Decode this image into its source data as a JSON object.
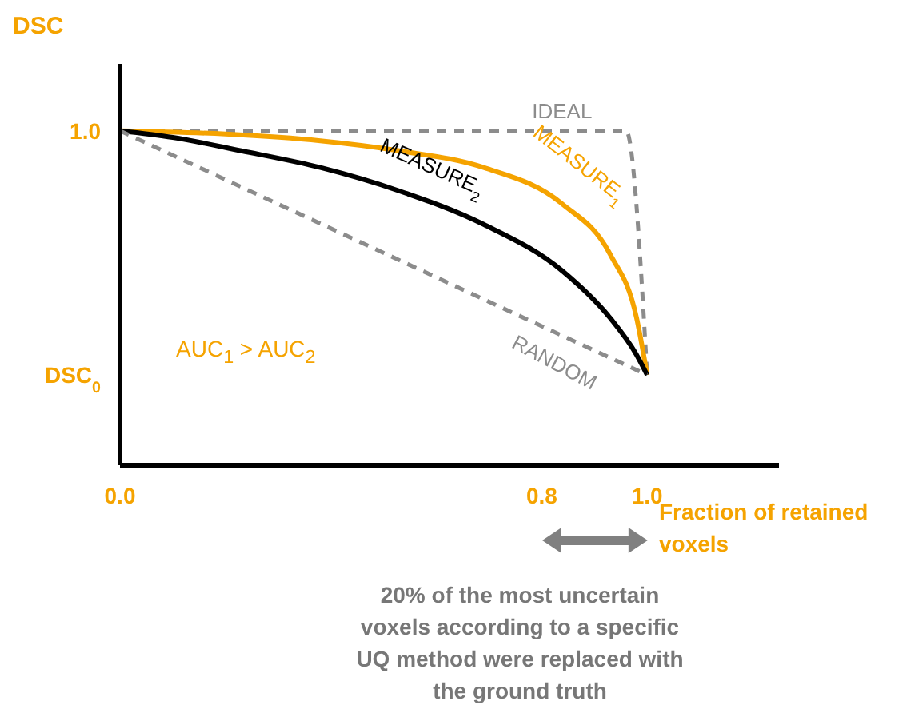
{
  "chart_data": {
    "type": "line",
    "ylabel": "DSC",
    "xlabel": "Fraction of retained voxels",
    "xlim": [
      0,
      1.25
    ],
    "xticks": [
      {
        "value": 0,
        "label": "0.0"
      },
      {
        "value": 0.8,
        "label": "0.8"
      },
      {
        "value": 1,
        "label": "1.0"
      }
    ],
    "ylim": [
      0,
      1.2
    ],
    "yticks": [
      {
        "value": 0.27,
        "label": "DSC$_{0}$"
      },
      {
        "value": 1,
        "label": "1.0"
      }
    ],
    "marker": "none",
    "series": [
      {
        "name": "IDEAL",
        "color": "#8c8c8c",
        "line_style": "dashed",
        "x": [
          0,
          0.96,
          1
        ],
        "values": [
          1,
          1,
          0.27
        ]
      },
      {
        "name": "MEASURE$_{1}$",
        "color": "#f5a300",
        "line_style": "solid",
        "x": [
          0,
          0.2,
          0.38,
          0.53,
          0.69,
          0.84,
          0.93,
          0.98,
          1
        ],
        "values": [
          1,
          0.99,
          0.97,
          0.94,
          0.89,
          0.78,
          0.63,
          0.44,
          0.27
        ]
      },
      {
        "name": "MEASURE$_{2}$",
        "color": "#000000",
        "line_style": "solid",
        "x": [
          0,
          0.1,
          0.23,
          0.38,
          0.53,
          0.69,
          0.84,
          0.93,
          0.98,
          1
        ],
        "values": [
          1,
          0.98,
          0.94,
          0.89,
          0.82,
          0.72,
          0.58,
          0.44,
          0.33,
          0.27
        ]
      },
      {
        "name": "RANDOM",
        "color": "#8c8c8c",
        "line_style": "dashed",
        "x": [
          0,
          1
        ],
        "values": [
          1,
          0.27
        ]
      }
    ],
    "annotations": [
      "AUC$_{1}$ > AUC$_{2}$",
      "20% of the most uncertain voxels according to a specific UQ method were replaced with the ground truth"
    ]
  }
}
